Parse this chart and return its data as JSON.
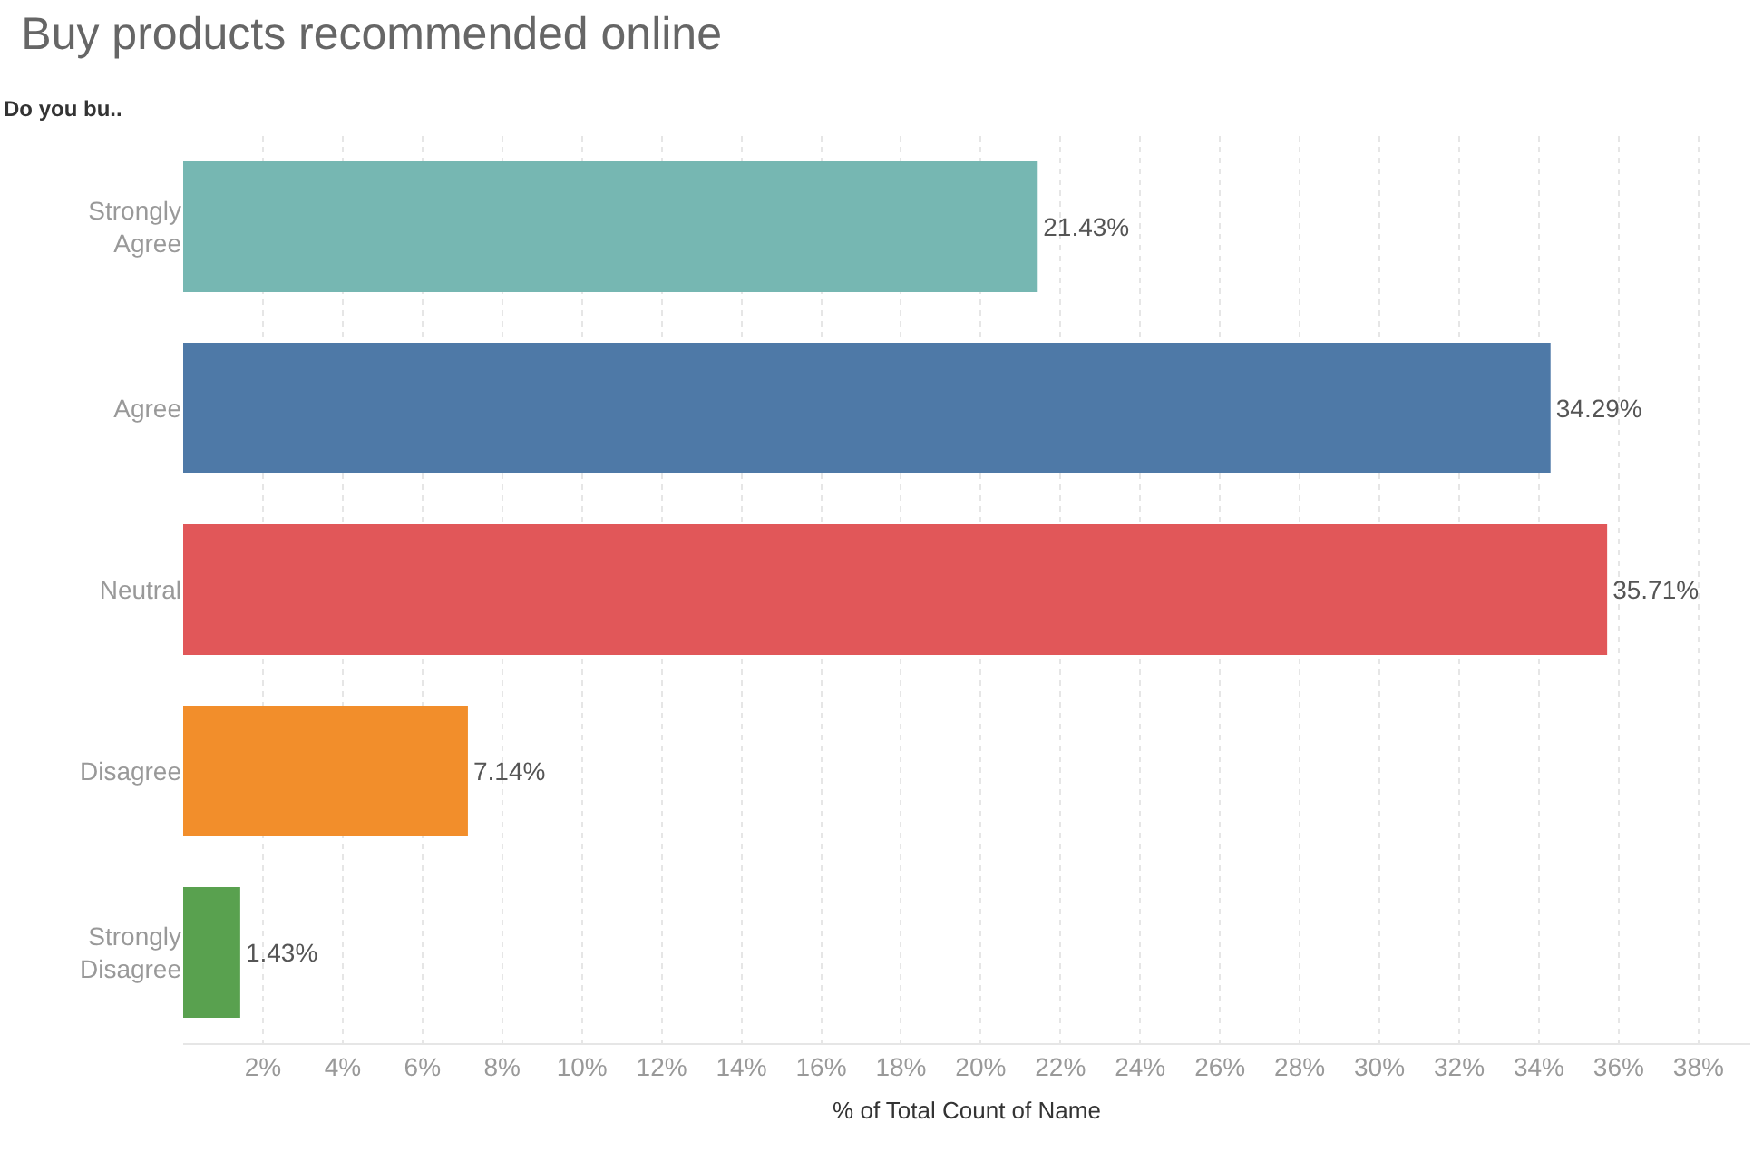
{
  "chart_data": {
    "type": "bar",
    "orientation": "horizontal",
    "title": "Buy products recommended online",
    "ylabel": "Do you bu..",
    "xlabel": "% of Total Count of Name",
    "categories": [
      "Strongly Agree",
      "Agree",
      "Neutral",
      "Disagree",
      "Strongly Disagree"
    ],
    "values": [
      21.43,
      34.29,
      35.71,
      7.14,
      1.43
    ],
    "colors": [
      "#76b7b2",
      "#4e79a7",
      "#e15759",
      "#f28e2b",
      "#59a14f"
    ],
    "value_labels": [
      "21.43%",
      "34.29%",
      "35.71%",
      "7.14%",
      "1.43%"
    ],
    "xlim": [
      0,
      39.3
    ],
    "xticks": [
      {
        "value": 2,
        "label": "2%"
      },
      {
        "value": 4,
        "label": "4%"
      },
      {
        "value": 6,
        "label": "6%"
      },
      {
        "value": 8,
        "label": "8%"
      },
      {
        "value": 10,
        "label": "10%"
      },
      {
        "value": 12,
        "label": "12%"
      },
      {
        "value": 14,
        "label": "14%"
      },
      {
        "value": 16,
        "label": "16%"
      },
      {
        "value": 18,
        "label": "18%"
      },
      {
        "value": 20,
        "label": "20%"
      },
      {
        "value": 22,
        "label": "22%"
      },
      {
        "value": 24,
        "label": "24%"
      },
      {
        "value": 26,
        "label": "26%"
      },
      {
        "value": 28,
        "label": "28%"
      },
      {
        "value": 30,
        "label": "30%"
      },
      {
        "value": 32,
        "label": "32%"
      },
      {
        "value": 34,
        "label": "34%"
      },
      {
        "value": 36,
        "label": "36%"
      },
      {
        "value": 38,
        "label": "38%"
      }
    ],
    "grid": "x"
  }
}
